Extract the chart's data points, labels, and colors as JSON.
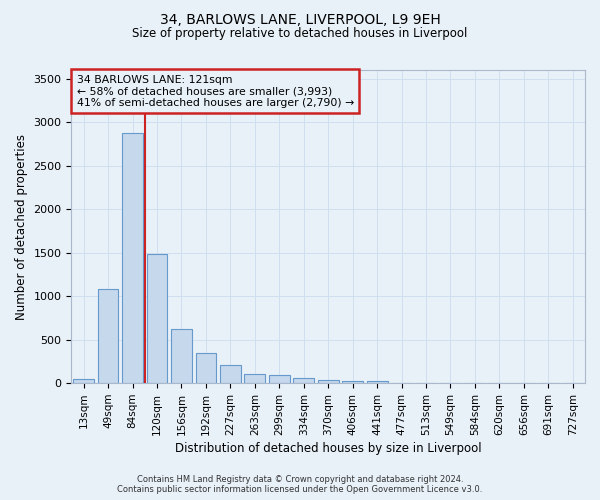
{
  "title": "34, BARLOWS LANE, LIVERPOOL, L9 9EH",
  "subtitle": "Size of property relative to detached houses in Liverpool",
  "xlabel": "Distribution of detached houses by size in Liverpool",
  "ylabel": "Number of detached properties",
  "annotation_line1": "34 BARLOWS LANE: 121sqm",
  "annotation_line2": "← 58% of detached houses are smaller (3,993)",
  "annotation_line3": "41% of semi-detached houses are larger (2,790) →",
  "footer_line1": "Contains HM Land Registry data © Crown copyright and database right 2024.",
  "footer_line2": "Contains public sector information licensed under the Open Government Licence v3.0.",
  "bar_labels": [
    "13sqm",
    "49sqm",
    "84sqm",
    "120sqm",
    "156sqm",
    "192sqm",
    "227sqm",
    "263sqm",
    "299sqm",
    "334sqm",
    "370sqm",
    "406sqm",
    "441sqm",
    "477sqm",
    "513sqm",
    "549sqm",
    "584sqm",
    "620sqm",
    "656sqm",
    "691sqm",
    "727sqm"
  ],
  "bar_values": [
    50,
    1080,
    2880,
    1480,
    620,
    350,
    210,
    105,
    90,
    60,
    35,
    20,
    20,
    5,
    5,
    2,
    2,
    0,
    0,
    0,
    0
  ],
  "red_line_between": [
    2,
    3
  ],
  "bar_color": "#c5d8ec",
  "bar_edge_color": "#6699cc",
  "annotation_box_edge_color": "#cc2222",
  "red_line_color": "#cc2222",
  "grid_color": "#d0dff0",
  "background_color": "#e8f0f8",
  "ylim": [
    0,
    3600
  ],
  "yticks": [
    0,
    500,
    1000,
    1500,
    2000,
    2500,
    3000,
    3500
  ]
}
